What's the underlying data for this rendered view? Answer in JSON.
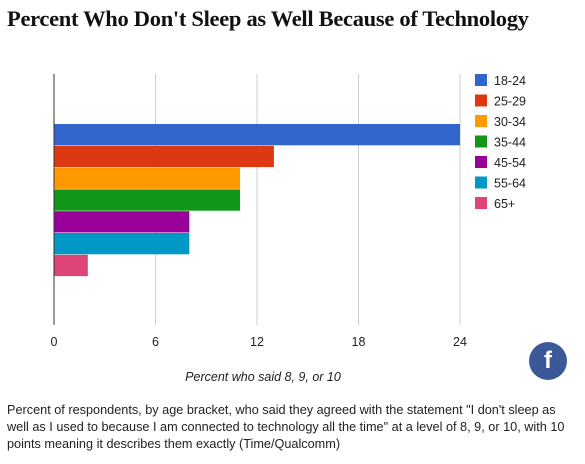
{
  "title": "Percent Who Don't Sleep as Well Because of Technology",
  "facebook": {
    "label": "f",
    "icon": "facebook-icon",
    "color": "#3b5998"
  },
  "caption": "Percent of respondents, by age bracket, who said they agreed with the statement \"I don't sleep as well as I used to because I am connected to technology all the time\" at a level of 8, 9, or 10, with 10 points meaning it describes them exactly (Time/Qualcomm)",
  "chart_data": {
    "type": "bar",
    "orientation": "horizontal",
    "xlabel": "Percent who said 8, 9, or 10",
    "xlim": [
      0,
      24
    ],
    "xticks": [
      "0",
      "6",
      "12",
      "18",
      "24"
    ],
    "grid": true,
    "legend_position": "right",
    "series": [
      {
        "name": "18-24",
        "value": 24,
        "color": "#3366cc"
      },
      {
        "name": "25-29",
        "value": 13,
        "color": "#dc3912"
      },
      {
        "name": "30-34",
        "value": 11,
        "color": "#ff9900"
      },
      {
        "name": "35-44",
        "value": 11,
        "color": "#109618"
      },
      {
        "name": "45-54",
        "value": 8,
        "color": "#990099"
      },
      {
        "name": "55-64",
        "value": 8,
        "color": "#0099c6"
      },
      {
        "name": "65+",
        "value": 2,
        "color": "#dd4477"
      }
    ]
  }
}
